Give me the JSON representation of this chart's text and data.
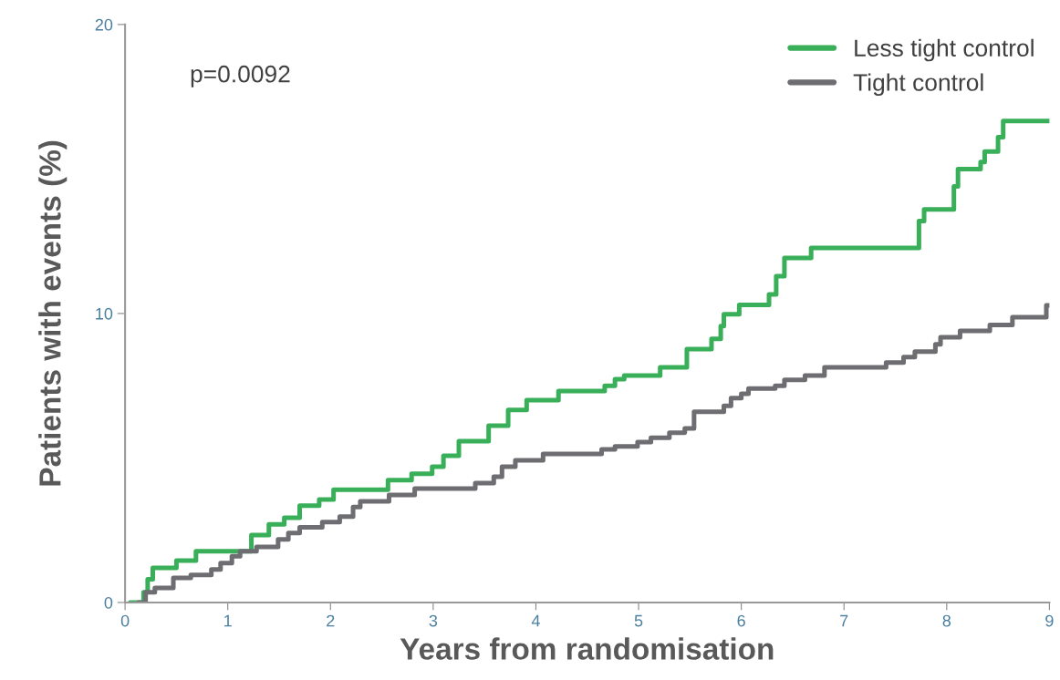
{
  "chart_data": {
    "type": "step",
    "xlabel": "Years from randomisation",
    "ylabel": "Patients with events (%)",
    "xlim": [
      0,
      9
    ],
    "xticks": [
      0,
      1,
      2,
      3,
      4,
      5,
      6,
      7,
      8,
      9
    ],
    "ylim": [
      0,
      20
    ],
    "yticks": [
      0,
      10,
      20
    ],
    "grid": false,
    "legend": "top right",
    "marker": "none",
    "line_style": "solid",
    "annotations": [
      "p=0.0092"
    ],
    "series": [
      {
        "name": "Less tight control",
        "color": "#3aaf5a",
        "x": [
          0.05,
          0.18,
          0.22,
          0.27,
          0.5,
          0.69,
          1.23,
          1.4,
          1.55,
          1.7,
          1.89,
          2.03,
          2.56,
          2.79,
          2.99,
          3.1,
          3.25,
          3.54,
          3.73,
          3.91,
          4.22,
          4.67,
          4.77,
          4.86,
          5.21,
          5.47,
          5.71,
          5.8,
          5.83,
          5.98,
          6.27,
          6.34,
          6.42,
          6.68,
          7.73,
          7.78,
          8.07,
          8.11,
          8.33,
          8.37,
          8.5,
          8.55,
          9.0
        ],
        "values": [
          0,
          0.35,
          0.8,
          1.2,
          1.45,
          1.77,
          2.33,
          2.7,
          2.93,
          3.35,
          3.56,
          3.9,
          4.23,
          4.45,
          4.7,
          5.08,
          5.58,
          6.12,
          6.66,
          7.0,
          7.32,
          7.5,
          7.73,
          7.85,
          8.14,
          8.77,
          9.12,
          9.56,
          9.97,
          10.3,
          10.66,
          11.29,
          11.92,
          12.27,
          13.2,
          13.6,
          14.4,
          15.0,
          15.24,
          15.6,
          16.1,
          16.66,
          16.66
        ]
      },
      {
        "name": "Tight control",
        "color": "#6d6d72",
        "x": [
          0.13,
          0.2,
          0.29,
          0.47,
          0.64,
          0.84,
          0.93,
          1.04,
          1.12,
          1.28,
          1.49,
          1.59,
          1.7,
          1.92,
          2.09,
          2.22,
          2.29,
          2.57,
          2.82,
          3.41,
          3.59,
          3.67,
          3.8,
          4.07,
          4.64,
          4.77,
          4.99,
          5.12,
          5.3,
          5.45,
          5.54,
          5.83,
          5.9,
          6.0,
          6.07,
          6.33,
          6.42,
          6.62,
          6.81,
          7.41,
          7.58,
          7.69,
          7.89,
          7.94,
          8.13,
          8.42,
          8.64,
          8.97,
          9.0
        ],
        "values": [
          0,
          0.35,
          0.5,
          0.85,
          0.95,
          1.14,
          1.36,
          1.6,
          1.77,
          1.92,
          2.18,
          2.4,
          2.6,
          2.78,
          2.97,
          3.3,
          3.5,
          3.72,
          3.94,
          4.13,
          4.35,
          4.7,
          4.92,
          5.14,
          5.3,
          5.4,
          5.55,
          5.7,
          5.87,
          6.02,
          6.6,
          6.8,
          7.07,
          7.22,
          7.4,
          7.5,
          7.7,
          7.85,
          8.14,
          8.3,
          8.49,
          8.68,
          8.93,
          9.18,
          9.4,
          9.6,
          9.87,
          10.28,
          10.28
        ]
      }
    ]
  }
}
